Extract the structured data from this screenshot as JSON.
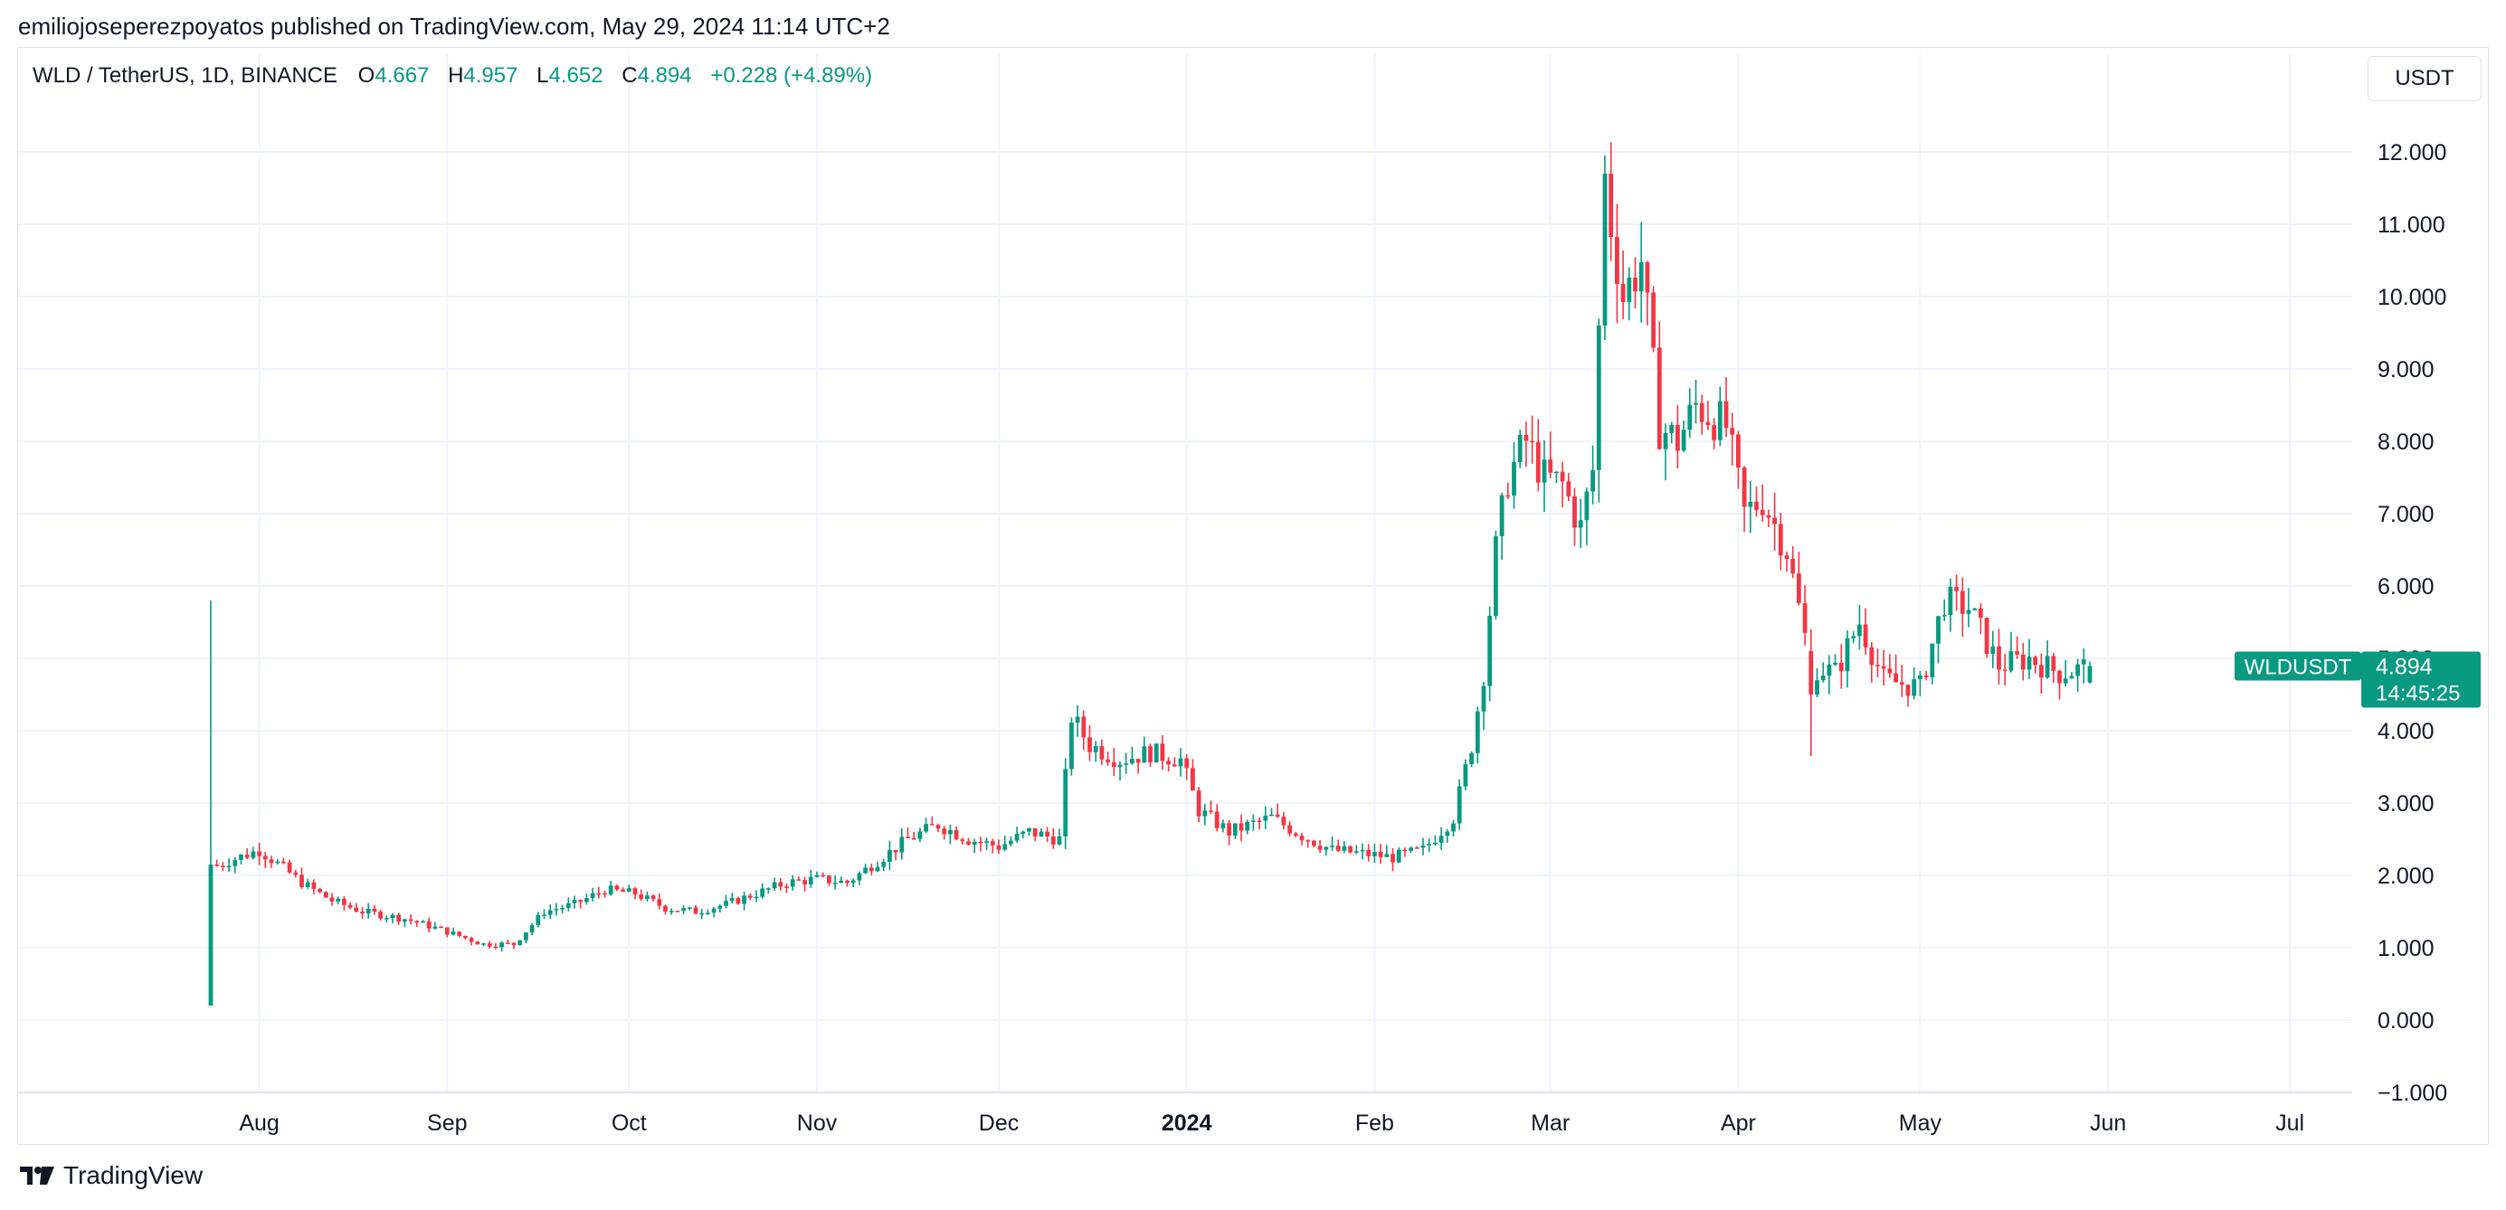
{
  "publisher_line": "emiliojoseperezpoyatos published on TradingView.com, May 29, 2024 11:14 UTC+2",
  "legend": {
    "symbol": "WLD / TetherUS, 1D, BINANCE",
    "open_label": "O",
    "open": "4.667",
    "high_label": "H",
    "high": "4.957",
    "low_label": "L",
    "low": "4.652",
    "close_label": "C",
    "close": "4.894",
    "change": "+0.228 (+4.89%)"
  },
  "unit_button": "USDT",
  "price_tag": {
    "symbol": "WLDUSDT",
    "price": "4.894",
    "countdown": "14:45:25"
  },
  "brand": "TradingView",
  "colors": {
    "up": "#089981",
    "down": "#f23645",
    "grid": "#f0f3fa",
    "text": "#131722"
  },
  "chart_data": {
    "type": "candlestick",
    "y_ticks": [
      "12.000",
      "11.000",
      "10.000",
      "9.000",
      "8.000",
      "7.000",
      "6.000",
      "5.000",
      "4.000",
      "3.000",
      "2.000",
      "1.000",
      "0.000",
      "−1.000"
    ],
    "ylim": [
      -1.0,
      12.7
    ],
    "x_ticks": [
      {
        "label": "Aug",
        "day": 8
      },
      {
        "label": "Sep",
        "day": 39
      },
      {
        "label": "Oct",
        "day": 69
      },
      {
        "label": "Nov",
        "day": 100
      },
      {
        "label": "Dec",
        "day": 130
      },
      {
        "label": "2024",
        "day": 161,
        "bold": true
      },
      {
        "label": "Feb",
        "day": 192
      },
      {
        "label": "Mar",
        "day": 221
      },
      {
        "label": "Apr",
        "day": 252
      },
      {
        "label": "May",
        "day": 282
      },
      {
        "label": "Jun",
        "day": 313
      },
      {
        "label": "Jul",
        "day": 343
      }
    ],
    "x_range_days": [
      -30,
      364
    ],
    "first_day_offset": 0,
    "anchors": [
      [
        0,
        2.1
      ],
      [
        3,
        2.2
      ],
      [
        8,
        2.35
      ],
      [
        12,
        2.1
      ],
      [
        15,
        1.9
      ],
      [
        20,
        1.65
      ],
      [
        25,
        1.5
      ],
      [
        32,
        1.4
      ],
      [
        38,
        1.25
      ],
      [
        45,
        1.05
      ],
      [
        50,
        1.05
      ],
      [
        55,
        1.5
      ],
      [
        60,
        1.6
      ],
      [
        65,
        1.8
      ],
      [
        70,
        1.75
      ],
      [
        75,
        1.55
      ],
      [
        80,
        1.5
      ],
      [
        85,
        1.6
      ],
      [
        90,
        1.75
      ],
      [
        95,
        1.9
      ],
      [
        100,
        1.95
      ],
      [
        105,
        1.9
      ],
      [
        110,
        2.2
      ],
      [
        115,
        2.5
      ],
      [
        120,
        2.7
      ],
      [
        125,
        2.5
      ],
      [
        130,
        2.4
      ],
      [
        135,
        2.6
      ],
      [
        140,
        2.5
      ],
      [
        142,
        4.2
      ],
      [
        145,
        3.8
      ],
      [
        150,
        3.6
      ],
      [
        155,
        3.7
      ],
      [
        160,
        3.6
      ],
      [
        163,
        2.9
      ],
      [
        168,
        2.6
      ],
      [
        175,
        2.8
      ],
      [
        180,
        2.55
      ],
      [
        185,
        2.35
      ],
      [
        190,
        2.3
      ],
      [
        195,
        2.25
      ],
      [
        200,
        2.35
      ],
      [
        205,
        2.8
      ],
      [
        208,
        3.8
      ],
      [
        210,
        4.8
      ],
      [
        212,
        6.5
      ],
      [
        214,
        7.5
      ],
      [
        217,
        8.0
      ],
      [
        220,
        7.5
      ],
      [
        223,
        7.4
      ],
      [
        226,
        6.8
      ],
      [
        228,
        7.6
      ],
      [
        230,
        11.5
      ],
      [
        233,
        10.0
      ],
      [
        236,
        10.5
      ],
      [
        239,
        8.2
      ],
      [
        242,
        8.0
      ],
      [
        245,
        8.5
      ],
      [
        250,
        8.2
      ],
      [
        253,
        7.0
      ],
      [
        256,
        7.2
      ],
      [
        260,
        6.5
      ],
      [
        264,
        4.9
      ],
      [
        268,
        4.8
      ],
      [
        272,
        5.5
      ],
      [
        276,
        4.7
      ],
      [
        282,
        4.6
      ],
      [
        286,
        5.8
      ],
      [
        290,
        5.7
      ],
      [
        295,
        4.9
      ],
      [
        300,
        5.0
      ],
      [
        305,
        4.8
      ],
      [
        308,
        4.85
      ],
      [
        310,
        4.89
      ]
    ],
    "notable_candles": [
      {
        "day": 0,
        "open": 0.2,
        "high": 5.8,
        "low": 0.2,
        "close": 2.15
      },
      {
        "day": 230,
        "open": 9.6,
        "high": 11.95,
        "low": 9.4,
        "close": 11.7
      },
      {
        "day": 264,
        "open": 5.1,
        "high": 5.4,
        "low": 3.65,
        "close": 4.5
      }
    ],
    "last_candle": {
      "open": 4.667,
      "high": 4.957,
      "low": 4.652,
      "close": 4.894
    }
  }
}
